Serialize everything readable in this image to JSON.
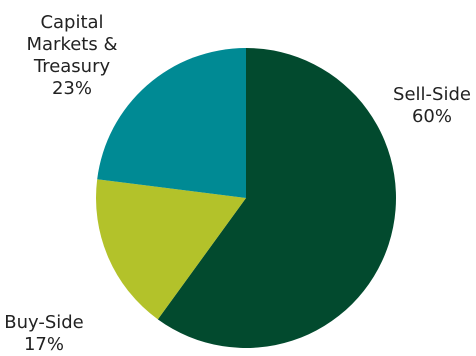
{
  "chart_data": {
    "type": "pie",
    "title": "",
    "slices": [
      {
        "label_lines": [
          "Sell-Side"
        ],
        "pct_label": "60%",
        "value": 60,
        "color": "#024a2e"
      },
      {
        "label_lines": [
          "Buy-Side"
        ],
        "pct_label": "17%",
        "value": 17,
        "color": "#b3c22a"
      },
      {
        "label_lines": [
          "Capital",
          "Markets &",
          "Treasury"
        ],
        "pct_label": "23%",
        "value": 23,
        "color": "#008a94"
      }
    ],
    "start_angle_deg": 0,
    "direction": "clockwise",
    "legend": "none"
  }
}
